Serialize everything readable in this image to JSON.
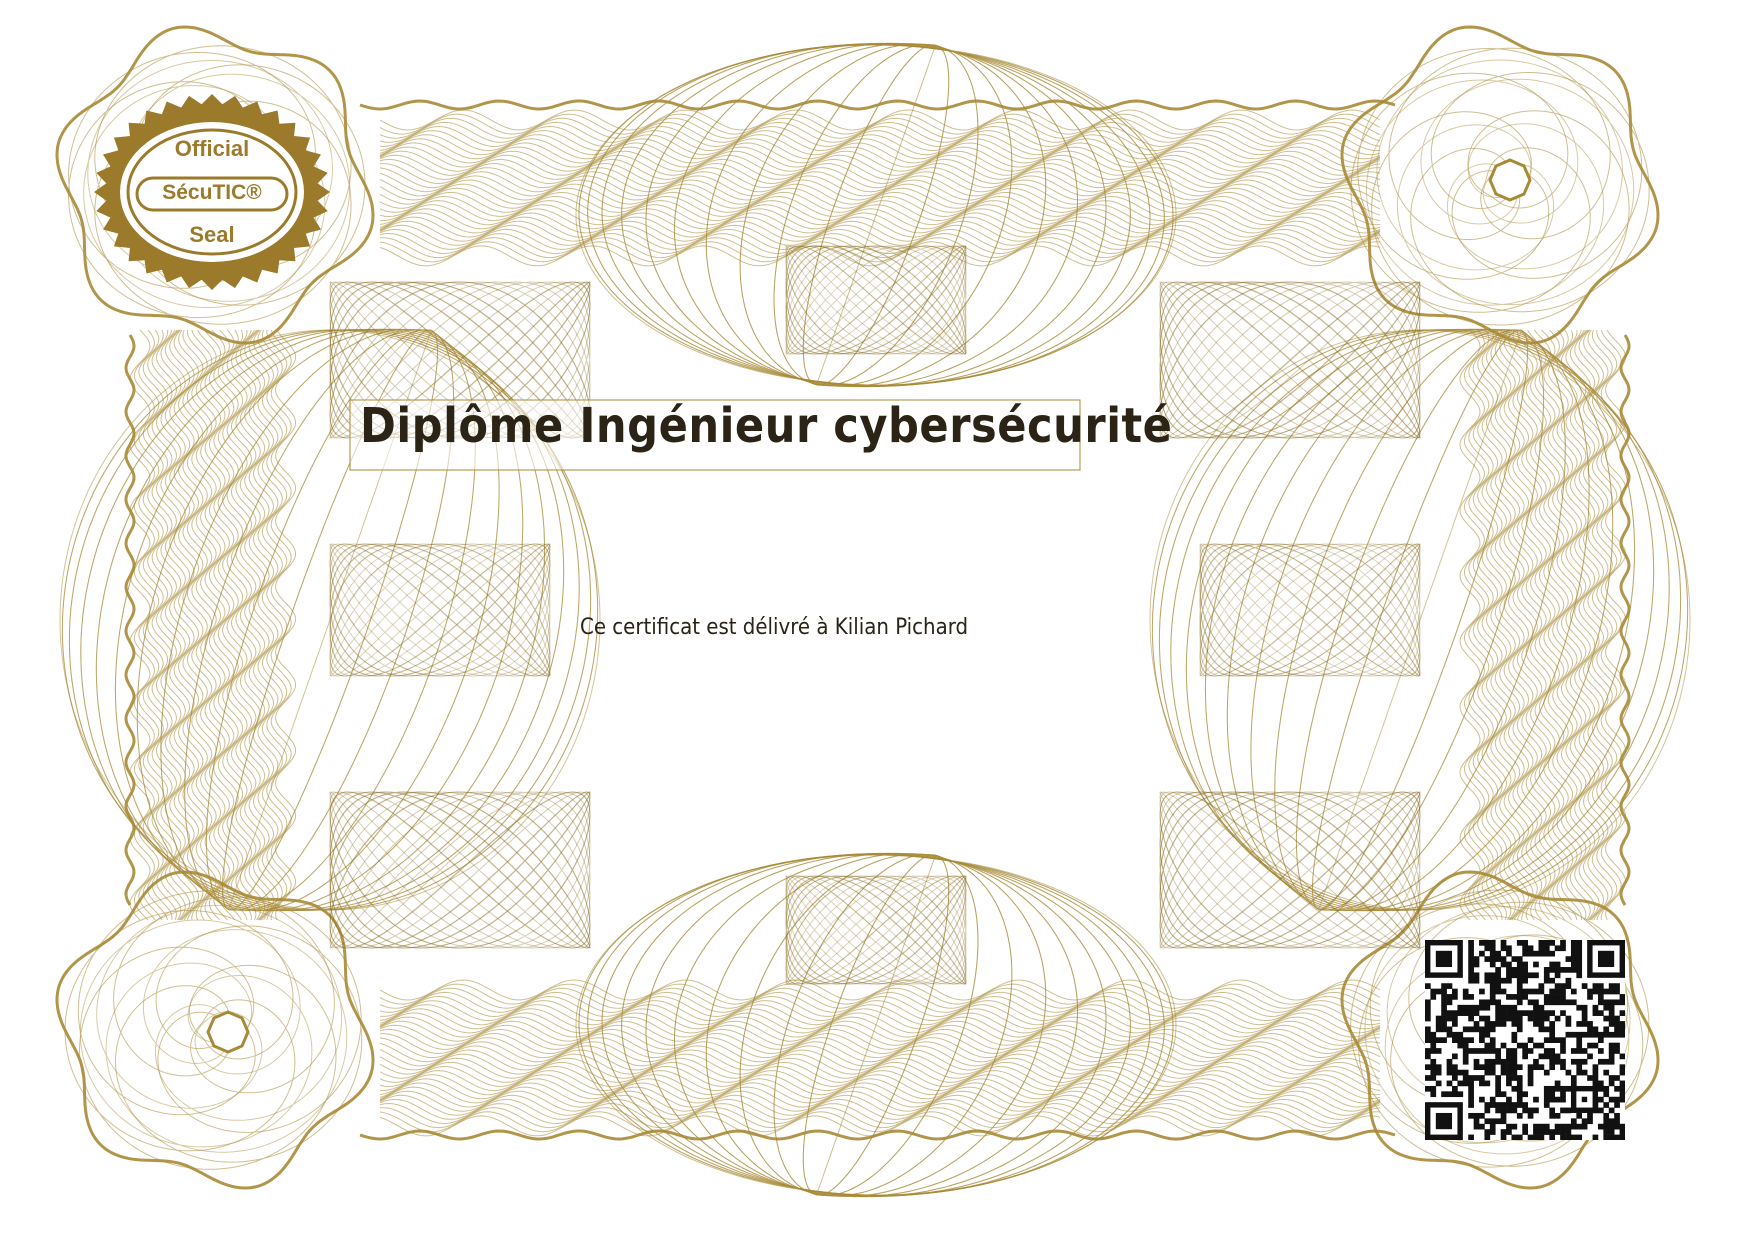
{
  "certificate": {
    "title": "Diplôme Ingénieur cybersécurité",
    "recipient_line": "Ce certificat est délivré à Kilian Pichard"
  },
  "seal": {
    "top_text": "Official",
    "brand": "SécuTIC®",
    "bottom_text": "Seal"
  },
  "qr_code": {
    "description": "QR code"
  },
  "colors": {
    "guilloche_gold": "#a88a36",
    "guilloche_dark": "#8a6d22",
    "text": "#2a2316",
    "background": "#ffffff"
  }
}
